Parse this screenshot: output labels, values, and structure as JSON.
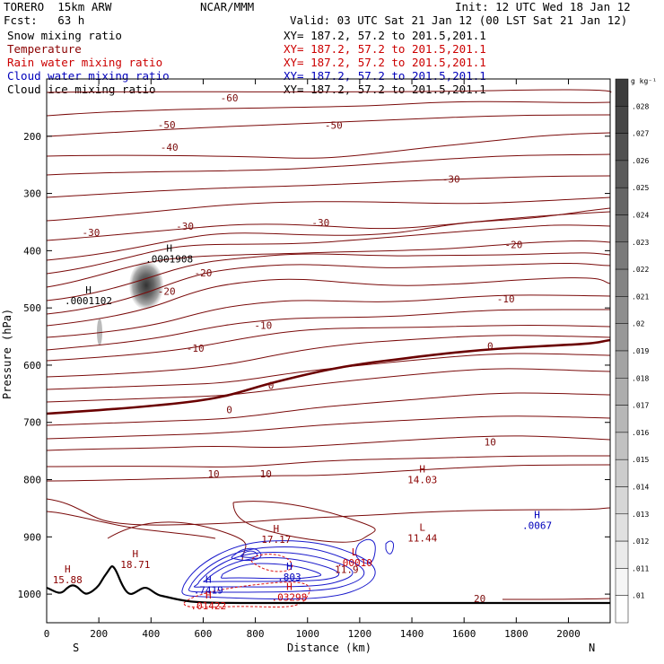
{
  "header": {
    "model": "TORERO  15km ARW",
    "center": "NCAR/MMM",
    "init": "Init: 12 UTC Wed 18 Jan 12",
    "fcst": "Fcst:   63 h",
    "valid": "Valid: 03 UTC Sat 21 Jan 12 (00 LST Sat 21 Jan 12)"
  },
  "fields": [
    {
      "label": "Snow mixing ratio",
      "xy": "XY= 187.2, 57.2 to 201.5,201.1",
      "label_color": "#000000",
      "xy_color": "#000000"
    },
    {
      "label": "Temperature",
      "xy": "XY= 187.2, 57.2 to 201.5,201.1",
      "label_color": "#8b0000",
      "xy_color": "#cc0000"
    },
    {
      "label": "Rain water mixing ratio",
      "xy": "XY= 187.2, 57.2 to 201.5,201.1",
      "label_color": "#cc0000",
      "xy_color": "#cc0000"
    },
    {
      "label": "Cloud water mixing ratio",
      "xy": "XY= 187.2, 57.2 to 201.5,201.1",
      "label_color": "#0000bb",
      "xy_color": "#0000bb"
    },
    {
      "label": "Cloud ice mixing ratio",
      "xy": "XY= 187.2, 57.2 to 201.5,201.1",
      "label_color": "#000000",
      "xy_color": "#000000"
    }
  ],
  "chart_data": {
    "type": "cross-section contour",
    "xlabel": "Distance (km)",
    "ylabel": "Pressure (hPa)",
    "xlim": [
      0,
      2160
    ],
    "ylim": [
      100,
      1050
    ],
    "x_ticks": [
      0,
      200,
      400,
      600,
      800,
      1000,
      1200,
      1400,
      1600,
      1800,
      2000
    ],
    "y_ticks": [
      200,
      300,
      400,
      500,
      600,
      700,
      800,
      900,
      1000
    ],
    "end_labels": {
      "left": "S",
      "right": "N"
    },
    "colorbar": {
      "unit": "g kg⁻¹",
      "levels": [
        ".028",
        ".027",
        ".026",
        ".025",
        ".024",
        ".023",
        ".022",
        ".021",
        ".02",
        ".019",
        ".018",
        ".017",
        ".016",
        ".015",
        ".014",
        ".013",
        ".012",
        ".011",
        ".01"
      ]
    },
    "temperature_contour_labels": [
      {
        "text": "-60",
        "x": 700,
        "p": 133
      },
      {
        "text": "-50",
        "x": 460,
        "p": 180
      },
      {
        "text": "-50",
        "x": 1100,
        "p": 181
      },
      {
        "text": "-40",
        "x": 470,
        "p": 219
      },
      {
        "text": "-30",
        "x": 1550,
        "p": 275
      },
      {
        "text": "-30",
        "x": 530,
        "p": 357
      },
      {
        "text": "-30",
        "x": 1050,
        "p": 351
      },
      {
        "text": "-30",
        "x": 170,
        "p": 368
      },
      {
        "text": "-20",
        "x": 1790,
        "p": 389
      },
      {
        "text": "-20",
        "x": 600,
        "p": 439
      },
      {
        "text": "-20",
        "x": 460,
        "p": 471
      },
      {
        "text": "-10",
        "x": 1760,
        "p": 484
      },
      {
        "text": "-10",
        "x": 830,
        "p": 530
      },
      {
        "text": "-10",
        "x": 570,
        "p": 570
      },
      {
        "text": "0",
        "x": 1700,
        "p": 566
      },
      {
        "text": "0",
        "x": 860,
        "p": 635
      },
      {
        "text": "0",
        "x": 700,
        "p": 678
      },
      {
        "text": "10",
        "x": 1700,
        "p": 734
      },
      {
        "text": "10",
        "x": 840,
        "p": 790
      },
      {
        "text": "10",
        "x": 640,
        "p": 790
      },
      {
        "text": "20",
        "x": 1660,
        "p": 1008
      }
    ],
    "extrema": [
      {
        "mark": "H",
        "value": ".0001908",
        "x": 470,
        "p": 414,
        "color": "#000000"
      },
      {
        "mark": "H",
        "value": ".0001102",
        "x": 160,
        "p": 487,
        "color": "#000000"
      },
      {
        "mark": "H",
        "value": "14.03",
        "x": 1440,
        "p": 800,
        "color": "#8b0000"
      },
      {
        "mark": "H",
        "value": "17.17",
        "x": 880,
        "p": 904,
        "color": "#8b0000"
      },
      {
        "mark": "L",
        "value": "11.44",
        "x": 1440,
        "p": 902,
        "color": "#8b0000"
      },
      {
        "mark": "H",
        "value": ".0067",
        "x": 1880,
        "p": 880,
        "color": "#0000bb"
      },
      {
        "mark": "H",
        "value": "18.71",
        "x": 340,
        "p": 948,
        "color": "#8b0000"
      },
      {
        "mark": "H",
        "value": "15.88",
        "x": 80,
        "p": 975,
        "color": "#8b0000"
      },
      {
        "mark": "L",
        "value": ".00010",
        "x": 1180,
        "p": 945,
        "color": "#cc0000"
      },
      {
        "mark": "",
        "value": "11.9",
        "x": 1150,
        "p": 957,
        "color": "#8b0000"
      },
      {
        "mark": "H",
        "value": ".803",
        "x": 930,
        "p": 970,
        "color": "#0000bb"
      },
      {
        "mark": "H",
        "value": ".7419",
        "x": 620,
        "p": 993,
        "color": "#0000bb"
      },
      {
        "mark": "H",
        "value": ".03298",
        "x": 930,
        "p": 1005,
        "color": "#cc0000"
      },
      {
        "mark": "H",
        "value": ".01422",
        "x": 620,
        "p": 1020,
        "color": "#cc0000"
      }
    ]
  }
}
